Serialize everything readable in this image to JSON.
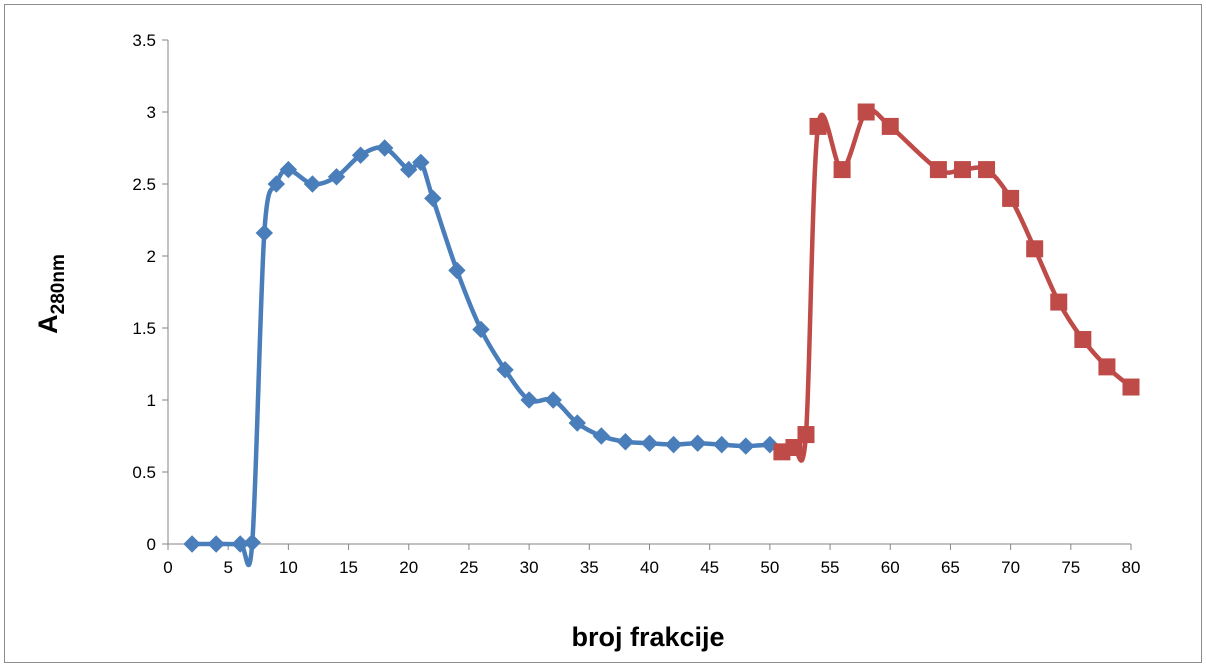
{
  "chart_data": {
    "type": "line",
    "xlabel": "broj frakcije",
    "ylabel": {
      "main": "A",
      "subscript": "280nm"
    },
    "xlim": [
      0,
      80
    ],
    "ylim": [
      0,
      3.5
    ],
    "xticks": [
      0,
      5,
      10,
      15,
      20,
      25,
      30,
      35,
      40,
      45,
      50,
      55,
      60,
      65,
      70,
      75,
      80
    ],
    "yticks": [
      0,
      0.5,
      1,
      1.5,
      2,
      2.5,
      3,
      3.5
    ],
    "xtick_labels": [
      "0",
      "5",
      "10",
      "15",
      "20",
      "25",
      "30",
      "35",
      "40",
      "45",
      "50",
      "55",
      "60",
      "65",
      "70",
      "75",
      "80"
    ],
    "ytick_labels": [
      "0",
      "0.5",
      "1",
      "1.5",
      "2",
      "2.5",
      "3",
      "3.5"
    ],
    "grid": false,
    "legend": "none",
    "series": [
      {
        "color": "#4a7ebb",
        "marker": "diamond",
        "smooth": true,
        "points": [
          [
            2,
            0
          ],
          [
            4,
            0
          ],
          [
            6,
            0
          ],
          [
            7,
            0.01
          ],
          [
            8,
            2.16
          ],
          [
            9,
            2.5
          ],
          [
            10,
            2.6
          ],
          [
            12,
            2.5
          ],
          [
            14,
            2.55
          ],
          [
            16,
            2.7
          ],
          [
            18,
            2.75
          ],
          [
            20,
            2.6
          ],
          [
            21,
            2.65
          ],
          [
            22,
            2.4
          ],
          [
            24,
            1.9
          ],
          [
            26,
            1.49
          ],
          [
            28,
            1.21
          ],
          [
            30,
            1.0
          ],
          [
            32,
            1.0
          ],
          [
            34,
            0.84
          ],
          [
            36,
            0.75
          ],
          [
            38,
            0.71
          ],
          [
            40,
            0.7
          ],
          [
            42,
            0.69
          ],
          [
            44,
            0.7
          ],
          [
            46,
            0.69
          ],
          [
            48,
            0.68
          ],
          [
            50,
            0.69
          ]
        ]
      },
      {
        "color": "#be4b48",
        "marker": "square",
        "smooth": true,
        "points": [
          [
            51,
            0.64
          ],
          [
            52,
            0.67
          ],
          [
            53,
            0.76
          ],
          [
            54,
            2.9
          ],
          [
            56,
            2.6
          ],
          [
            58,
            3.0
          ],
          [
            60,
            2.9
          ],
          [
            64,
            2.6
          ],
          [
            66,
            2.6
          ],
          [
            68,
            2.6
          ],
          [
            70,
            2.4
          ],
          [
            72,
            2.05
          ],
          [
            74,
            1.68
          ],
          [
            76,
            1.42
          ],
          [
            78,
            1.23
          ],
          [
            80,
            1.09
          ]
        ]
      }
    ]
  }
}
